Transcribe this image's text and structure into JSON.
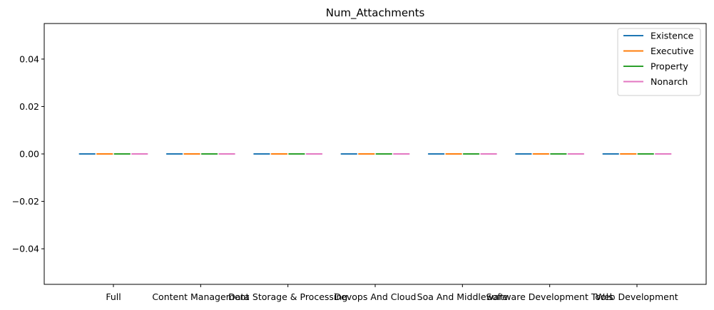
{
  "chart_data": {
    "type": "bar",
    "title": "Num_Attachments",
    "xlabel": "",
    "ylabel": "",
    "categories": [
      "Full",
      "Content Management",
      "Data Storage & Processing",
      "Devops And Cloud",
      "Soa And Middleware",
      "Software Development Tools",
      "Web Development"
    ],
    "series": [
      {
        "name": "Existence",
        "color": "#1f77b4",
        "values": [
          0,
          0,
          0,
          0,
          0,
          0,
          0
        ]
      },
      {
        "name": "Executive",
        "color": "#ff7f0e",
        "values": [
          0,
          0,
          0,
          0,
          0,
          0,
          0
        ]
      },
      {
        "name": "Property",
        "color": "#2ca02c",
        "values": [
          0,
          0,
          0,
          0,
          0,
          0,
          0
        ]
      },
      {
        "name": "Nonarch",
        "color": "#e377c2",
        "values": [
          0,
          0,
          0,
          0,
          0,
          0,
          0
        ]
      }
    ],
    "yticks": [
      -0.04,
      -0.02,
      0.0,
      0.02,
      0.04
    ],
    "ytick_labels": [
      "−0.04",
      "−0.02",
      "0.00",
      "0.02",
      "0.04"
    ],
    "ylim": [
      -0.055,
      0.055
    ],
    "grid": false,
    "legend_position": "upper right"
  }
}
